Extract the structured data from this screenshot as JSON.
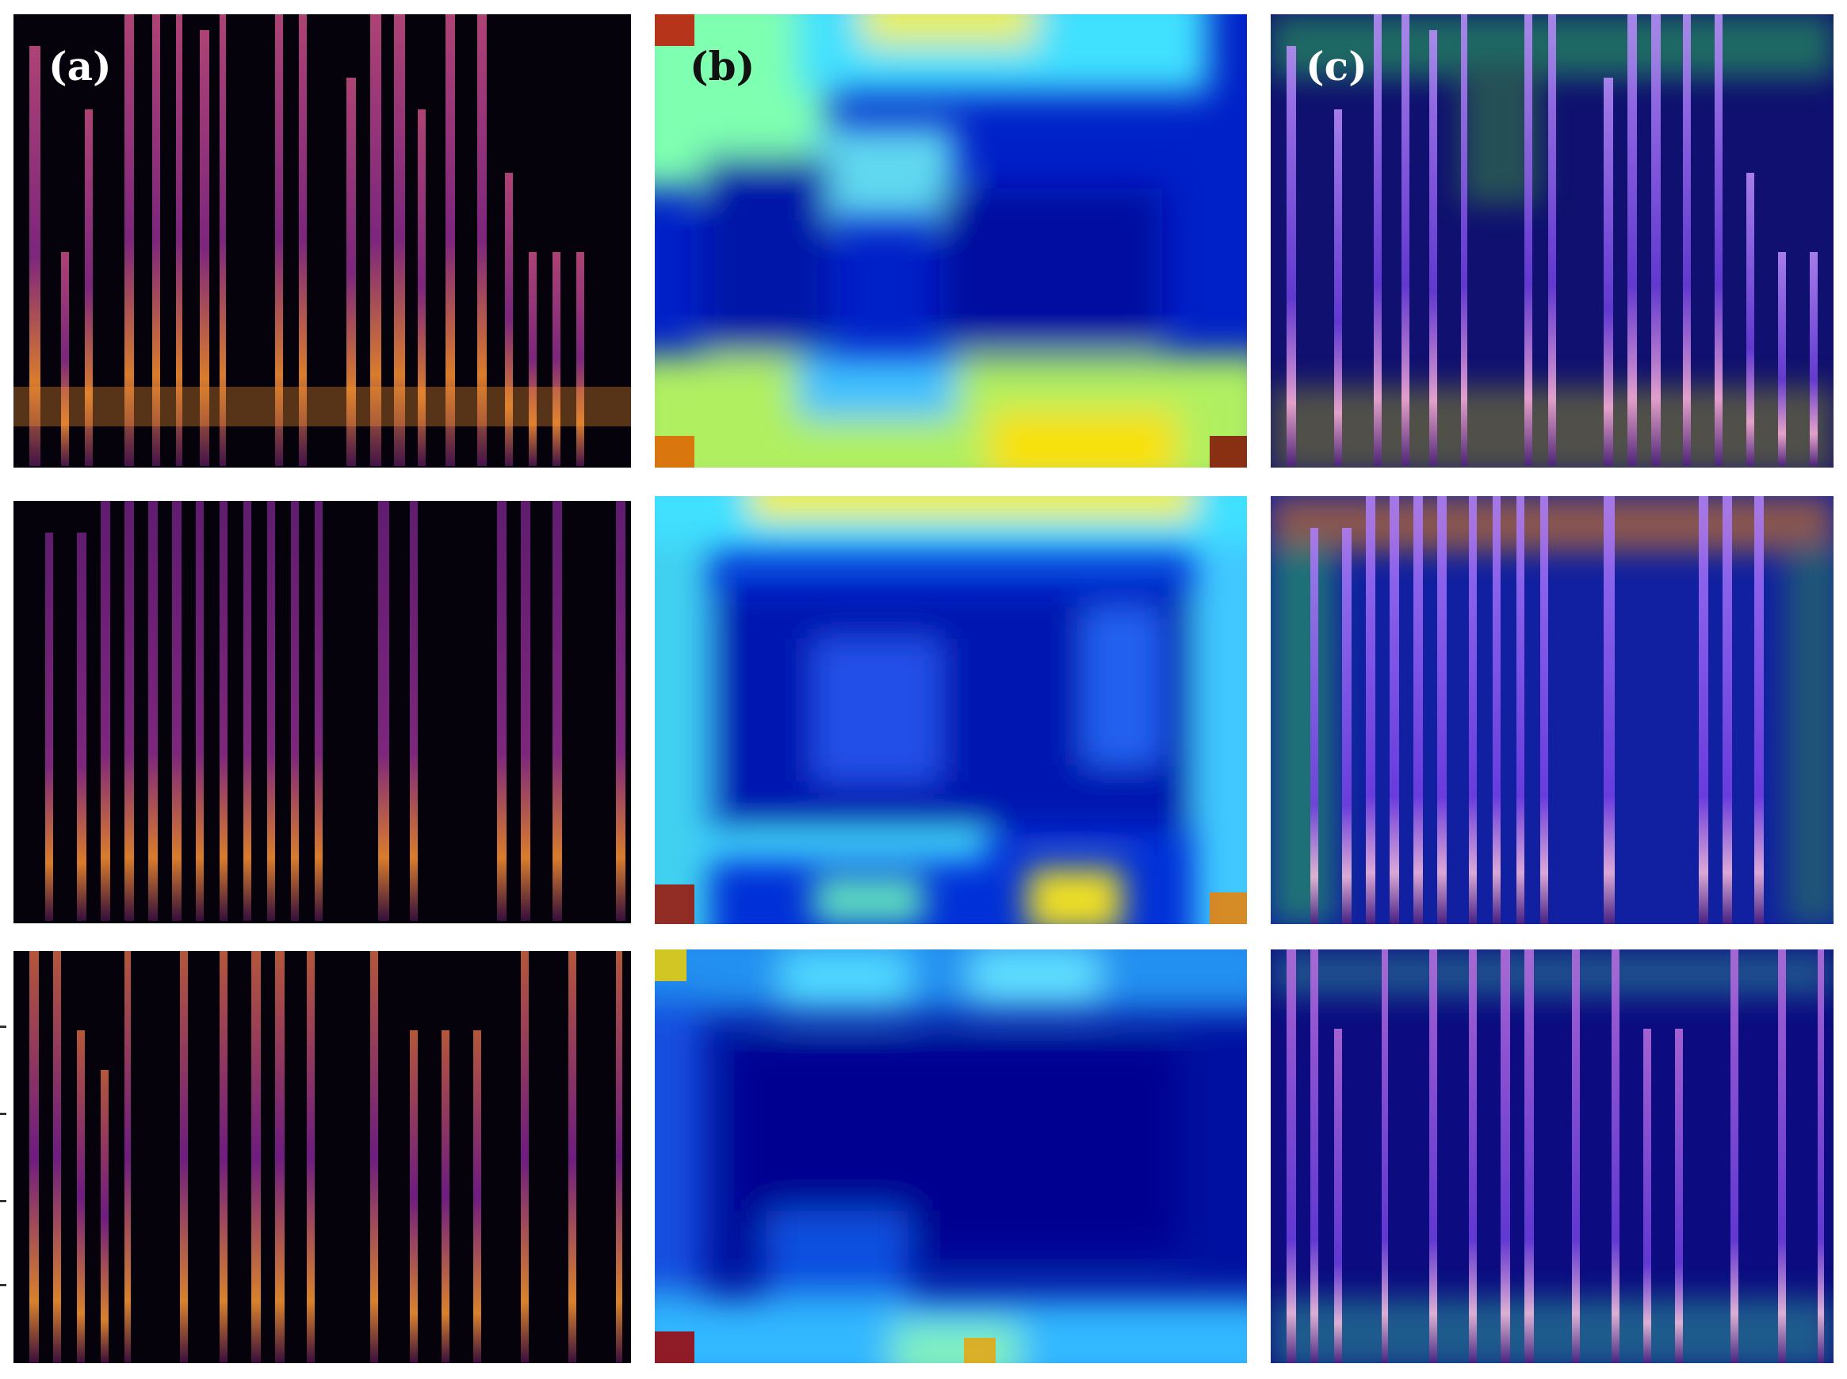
{
  "figure": {
    "columns": [
      {
        "label": "(a)",
        "content": "spectrogram"
      },
      {
        "label": "(b)",
        "content": "heatmap"
      },
      {
        "label": "(c)",
        "content": "overlay"
      }
    ],
    "row_count": 3
  },
  "colors": {
    "spectrogram_dark": "#05020c",
    "spectrogram_mid": "#7a1f8e",
    "spectrogram_bright": "#f7a52a",
    "heatmap_low": "#00009c",
    "heatmap_mid": "#00c8ff",
    "heatmap_high": "#ffe600",
    "heatmap_peak": "#a50000"
  }
}
